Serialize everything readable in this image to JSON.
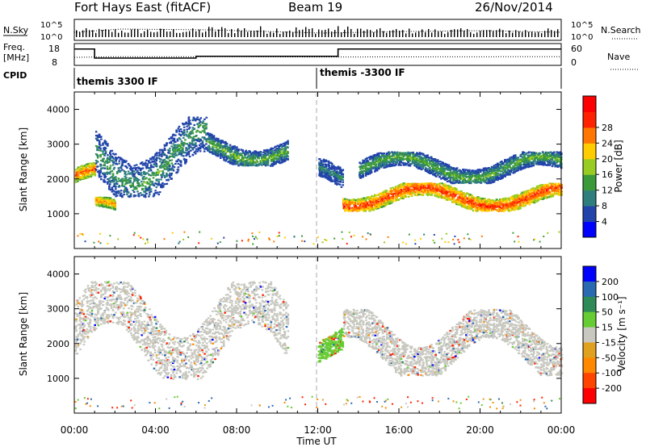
{
  "header": {
    "station": "Fort Hays East (fitACF)",
    "beam": "Beam 19",
    "date": "26/Nov/2014"
  },
  "status_panels": {
    "nsky_label": "N.Sky",
    "nsearch_label": "N.Search",
    "noise_ticks": [
      "10^5",
      "10^0"
    ],
    "freq_label_line1": "Freq.",
    "freq_label_line2": "[MHz]",
    "freq_ticks": [
      "18",
      "8"
    ],
    "nave_label": "Nave",
    "nave_ticks": [
      "60",
      "0"
    ],
    "cpid_label": "CPID",
    "cpid_segments": [
      {
        "label": "themis 3300 IF",
        "start_h": 0.0,
        "end_h": 12.0
      },
      {
        "label": "themis -3300 IF",
        "start_h": 12.0,
        "end_h": 24.0
      }
    ],
    "freq_trace_mhz": [
      [
        0,
        15
      ],
      [
        1,
        15
      ],
      [
        1,
        10
      ],
      [
        6,
        10
      ],
      [
        6,
        11
      ],
      [
        13,
        11
      ],
      [
        13,
        15
      ],
      [
        24,
        15
      ]
    ],
    "nave_trace": [
      [
        0,
        22
      ],
      [
        2,
        24
      ],
      [
        8,
        24
      ],
      [
        12,
        23
      ],
      [
        24,
        24
      ]
    ]
  },
  "chart_data": [
    {
      "type": "heatmap",
      "name": "power-panel",
      "ylabel": "Slant Range [km]",
      "yticks": [
        1000,
        2000,
        3000,
        4000
      ],
      "ylim": [
        0,
        4500
      ],
      "xlim_hours": [
        0,
        24
      ],
      "colorbar_label": "Power [dB]",
      "colorbar_ticks": [
        "4",
        "8",
        "12",
        "16",
        "20",
        "24",
        "28"
      ],
      "colorbar_colors": [
        "#0000ff",
        "#2244aa",
        "#2e7e7e",
        "#3a9a3a",
        "#99cc22",
        "#ffcc00",
        "#ff7700",
        "#ff2200",
        "#ff0000"
      ],
      "approx_echo_bands": [
        {
          "from_h": 0.0,
          "to_h": 1.0,
          "range_km": [
            1750,
            2500
          ],
          "power_db": 26
        },
        {
          "from_h": 1.0,
          "to_h": 2.0,
          "range_km": [
            950,
            1500
          ],
          "power_db": 24
        },
        {
          "from_h": 1.0,
          "to_h": 6.5,
          "range_km": [
            1500,
            3800
          ],
          "power_db": 12
        },
        {
          "from_h": 6.5,
          "to_h": 10.5,
          "range_km": [
            2400,
            3400
          ],
          "power_db": 14
        },
        {
          "from_h": 12.0,
          "to_h": 13.2,
          "range_km": [
            1600,
            2600
          ],
          "power_db": 10
        },
        {
          "from_h": 13.2,
          "to_h": 24.0,
          "range_km": [
            1100,
            1900
          ],
          "power_db": 28
        },
        {
          "from_h": 14.0,
          "to_h": 24.0,
          "range_km": [
            1900,
            2800
          ],
          "power_db": 14
        }
      ]
    },
    {
      "type": "heatmap",
      "name": "velocity-panel",
      "ylabel": "Slant Range [km]",
      "yticks": [
        1000,
        2000,
        3000,
        4000
      ],
      "ylim": [
        0,
        4500
      ],
      "xlim_hours": [
        0,
        24
      ],
      "xlabel": "Time UT",
      "xticks": [
        "00:00",
        "04:00",
        "08:00",
        "12:00",
        "16:00",
        "20:00",
        "00:00"
      ],
      "colorbar_label": "Velocity [m s⁻¹]",
      "colorbar_ticks": [
        "200",
        "100",
        "50",
        "15",
        "-15",
        "-50",
        "-100",
        "-200"
      ],
      "colorbar_colors": [
        "#0000ff",
        "#2a6ab0",
        "#2e8b57",
        "#66cc33",
        "#c8c8c0",
        "#e0a020",
        "#ff8800",
        "#ff4400",
        "#ff0000"
      ],
      "approx_echo_bands": [
        {
          "from_h": 0.0,
          "to_h": 10.5,
          "range_km": [
            1000,
            3800
          ],
          "velocity_mps": 0
        },
        {
          "from_h": 12.0,
          "to_h": 13.2,
          "range_km": [
            1500,
            2600
          ],
          "velocity_mps": 40
        },
        {
          "from_h": 13.2,
          "to_h": 24.0,
          "range_km": [
            1100,
            3000
          ],
          "velocity_mps": 0
        }
      ]
    }
  ]
}
